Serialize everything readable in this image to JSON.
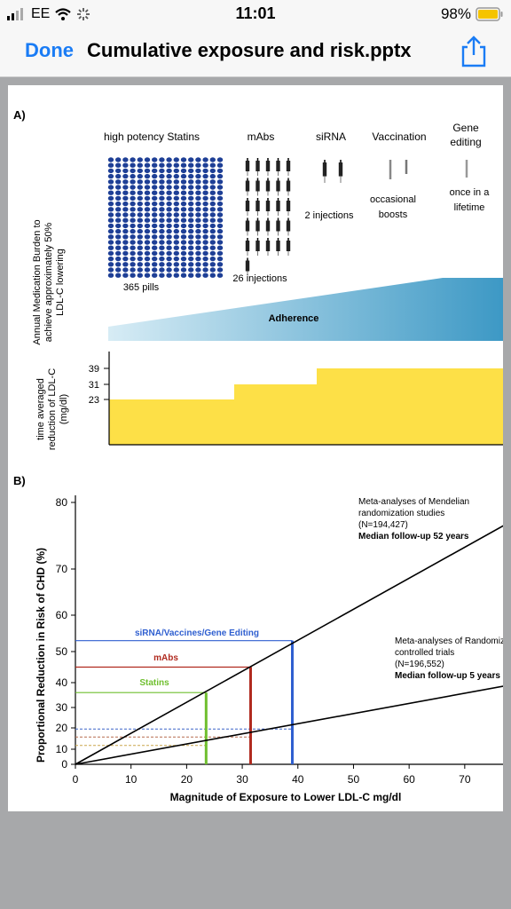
{
  "status": {
    "carrier": "EE",
    "time": "11:01",
    "battery": "98%"
  },
  "nav": {
    "done": "Done",
    "title": "Cumulative exposure and risk.pptx"
  },
  "panelA": {
    "label": "A)",
    "y_axis_label_lines": [
      "Annual Medication Burden to",
      "achieve approximately 50%",
      "LDL-C lowering"
    ],
    "columns": [
      {
        "title": "high potency Statins",
        "caption": "365 pills"
      },
      {
        "title": "mAbs",
        "caption": "26 injections"
      },
      {
        "title": "siRNA",
        "caption": "2 injections"
      },
      {
        "title": "Vaccination",
        "caption_lines": [
          "occasional",
          "boosts"
        ]
      },
      {
        "title_lines": [
          "Gene",
          "editing"
        ],
        "caption_lines": [
          "once in a",
          "lifetime"
        ]
      }
    ],
    "adherence_label": "Adherence",
    "step_chart": {
      "y_label_lines": [
        "time averaged",
        "reduction of LDL-C",
        "(mg/dl)"
      ],
      "ticks": [
        "39",
        "31",
        "23"
      ],
      "levels": [
        23,
        31,
        39
      ],
      "color": "#fde047"
    }
  },
  "panelB": {
    "label": "B)",
    "annotation_top_lines": [
      "Meta-analyses of Mendelian",
      "randomization studies",
      "(N=194,427)"
    ],
    "annotation_top_bold": "Median follow-up 52 years",
    "annotation_bottom_lines": [
      "Meta-analyses of Randomized",
      "controlled trials",
      "(N=196,552)"
    ],
    "annotation_bottom_bold": "Median follow-up 5 years",
    "ref_labels": [
      "siRNA/Vaccines/Gene Editing",
      "mAbs",
      "Statins"
    ],
    "colors": {
      "sirna": "#2f5fd0",
      "mabs": "#b02a1f",
      "statins": "#6fbf2f"
    }
  },
  "chart_data": {
    "type": "line",
    "title": "",
    "xlabel": "Magnitude of Exposure to Lower LDL-C mg/dl",
    "ylabel": "Proportional Reduction in Risk of CHD (%)",
    "x_ticks": [
      "0",
      "10",
      "20",
      "30",
      "40",
      "50",
      "60",
      "70"
    ],
    "y_ticks": [
      "0",
      "10",
      "20",
      "30",
      "40",
      "50",
      "60",
      "70",
      "80"
    ],
    "y_tick_values": [
      0,
      10,
      20,
      30,
      40,
      50,
      60,
      70,
      80
    ],
    "series": [
      {
        "name": "Mendelian randomization",
        "x": [
          0,
          78
        ],
        "y": [
          0,
          77
        ]
      },
      {
        "name": "Randomized controlled trials",
        "x": [
          0,
          78
        ],
        "y": [
          0,
          39
        ]
      }
    ],
    "vertical_markers": [
      {
        "label": "Statins",
        "x": 23.5,
        "y": 36
      },
      {
        "label": "mAbs",
        "x": 31.5,
        "y": 45
      },
      {
        "label": "siRNA/Vaccines/Gene Editing",
        "x": 39,
        "y": 53
      }
    ]
  }
}
